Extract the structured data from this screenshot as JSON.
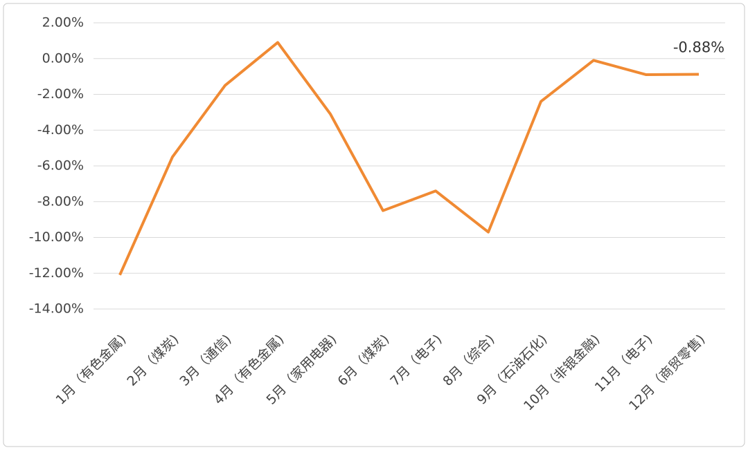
{
  "chart_data": {
    "type": "line",
    "categories": [
      "1月（有色金属)",
      "2月（煤炭)",
      "3月（通信)",
      "4月（有色金属)",
      "5月（家用电器)",
      "6月（煤炭)",
      "7月（电子)",
      "8月（综合)",
      "9月（石油石化)",
      "10月（非银金融)",
      "11月（电子)",
      "12月（商贸零售)"
    ],
    "series": [
      {
        "color": "#f08a33",
        "values": [
          -12.1,
          -5.5,
          -1.5,
          0.9,
          -3.1,
          -8.5,
          -7.4,
          -9.7,
          -2.4,
          -0.1,
          -0.9,
          -0.88
        ],
        "value_labels": [
          null,
          null,
          null,
          null,
          null,
          null,
          null,
          null,
          null,
          null,
          null,
          "-0.88%"
        ]
      }
    ],
    "ylim": [
      -14,
      2
    ],
    "yticks": [
      {
        "value": 2,
        "label": "2.00%"
      },
      {
        "value": 0,
        "label": "0.00%"
      },
      {
        "value": -2,
        "label": "-2.00%"
      },
      {
        "value": -4,
        "label": "-4.00%"
      },
      {
        "value": -6,
        "label": "-6.00%"
      },
      {
        "value": -8,
        "label": "-8.00%"
      },
      {
        "value": -10,
        "label": "-10.00%"
      },
      {
        "value": -12,
        "label": "-12.00%"
      },
      {
        "value": -14,
        "label": "-14.00%"
      }
    ],
    "grid": true
  }
}
